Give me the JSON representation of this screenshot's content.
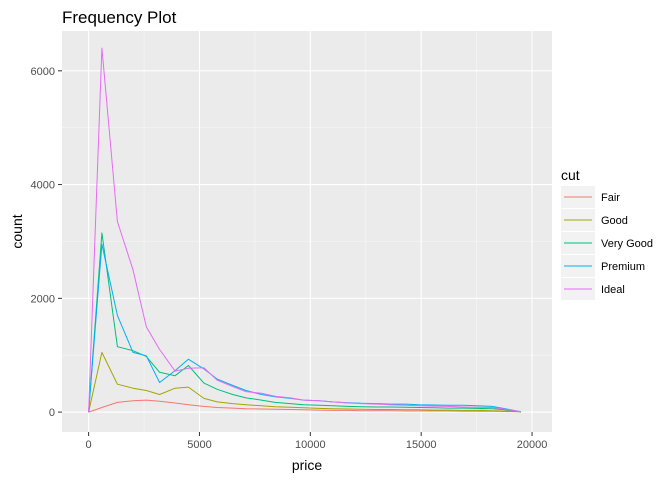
{
  "chart_data": {
    "type": "line",
    "title": "Frequency Plot",
    "xlabel": "price",
    "ylabel": "count",
    "xlim": [
      -1200,
      20900
    ],
    "ylim": [
      -350,
      6700
    ],
    "x_ticks": [
      0,
      5000,
      10000,
      15000,
      20000
    ],
    "x_tick_labels": [
      "0",
      "5000",
      "10000",
      "15000",
      "20000"
    ],
    "y_ticks": [
      0,
      2000,
      4000,
      6000
    ],
    "y_tick_labels": [
      "0",
      "2000",
      "4000",
      "6000"
    ],
    "grid": true,
    "legend": {
      "title": "cut",
      "position": "right"
    },
    "series": [
      {
        "name": "Fair",
        "color": "#F8766D",
        "x": [
          0,
          600,
          1300,
          2000,
          2600,
          3200,
          3900,
          4500,
          5200,
          5800,
          6500,
          7100,
          7800,
          8400,
          9100,
          9700,
          10400,
          11000,
          11700,
          12300,
          13000,
          13600,
          14300,
          14900,
          15600,
          16200,
          16900,
          17500,
          18200,
          18800,
          19500
        ],
        "y": [
          0,
          80,
          170,
          200,
          210,
          190,
          160,
          130,
          100,
          80,
          70,
          60,
          55,
          50,
          45,
          40,
          35,
          30,
          30,
          25,
          25,
          25,
          20,
          20,
          20,
          20,
          15,
          15,
          15,
          10,
          5
        ]
      },
      {
        "name": "Good",
        "color": "#A3A500",
        "x": [
          0,
          600,
          1300,
          2000,
          2600,
          3200,
          3900,
          4500,
          5200,
          5800,
          6500,
          7100,
          7800,
          8400,
          9100,
          9700,
          10400,
          11000,
          11700,
          12300,
          13000,
          13600,
          14300,
          14900,
          15600,
          16200,
          16900,
          17500,
          18200,
          18800,
          19500
        ],
        "y": [
          0,
          1050,
          490,
          420,
          380,
          310,
          420,
          440,
          240,
          180,
          150,
          130,
          110,
          95,
          85,
          75,
          65,
          60,
          55,
          50,
          45,
          45,
          40,
          40,
          35,
          35,
          30,
          30,
          25,
          20,
          5
        ]
      },
      {
        "name": "Very Good",
        "color": "#00BF7D",
        "x": [
          0,
          600,
          1300,
          2000,
          2600,
          3200,
          3900,
          4500,
          5200,
          5800,
          6500,
          7100,
          7800,
          8400,
          9100,
          9700,
          10400,
          11000,
          11700,
          12300,
          13000,
          13600,
          14300,
          14900,
          15600,
          16200,
          16900,
          17500,
          18200,
          18800,
          19500
        ],
        "y": [
          0,
          3150,
          1150,
          1080,
          980,
          700,
          640,
          820,
          510,
          400,
          310,
          250,
          210,
          170,
          150,
          130,
          120,
          110,
          100,
          95,
          90,
          90,
          85,
          80,
          75,
          70,
          70,
          65,
          60,
          40,
          5
        ]
      },
      {
        "name": "Premium",
        "color": "#00B0F6",
        "x": [
          0,
          600,
          1300,
          2000,
          2600,
          3200,
          3900,
          4500,
          5200,
          5800,
          6500,
          7100,
          7800,
          8400,
          9100,
          9700,
          10400,
          11000,
          11700,
          12300,
          13000,
          13600,
          14300,
          14900,
          15600,
          16200,
          16900,
          17500,
          18200,
          18800,
          19500
        ],
        "y": [
          0,
          2950,
          1700,
          1050,
          990,
          520,
          730,
          930,
          760,
          580,
          470,
          380,
          310,
          270,
          240,
          210,
          200,
          180,
          165,
          155,
          150,
          140,
          140,
          130,
          125,
          120,
          120,
          110,
          100,
          60,
          5
        ]
      },
      {
        "name": "Ideal",
        "color": "#E76BF3",
        "x": [
          0,
          600,
          1300,
          2000,
          2600,
          3200,
          3900,
          4500,
          5200,
          5800,
          6500,
          7100,
          7800,
          8400,
          9100,
          9700,
          10400,
          11000,
          11700,
          12300,
          13000,
          13600,
          14300,
          14900,
          15600,
          16200,
          16900,
          17500,
          18200,
          18800,
          19500
        ],
        "y": [
          0,
          6400,
          3350,
          2500,
          1500,
          1100,
          720,
          770,
          780,
          560,
          450,
          360,
          330,
          280,
          250,
          210,
          200,
          180,
          160,
          150,
          140,
          130,
          120,
          110,
          105,
          100,
          90,
          85,
          80,
          50,
          5
        ]
      }
    ]
  }
}
